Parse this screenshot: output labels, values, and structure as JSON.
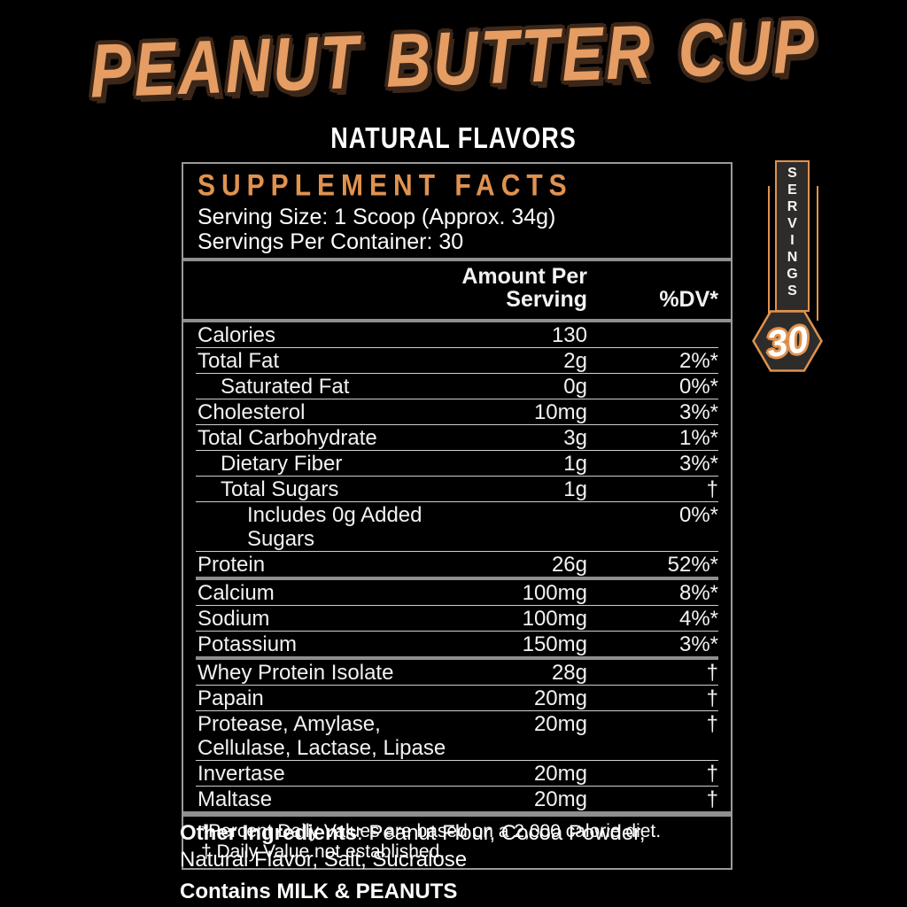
{
  "header": {
    "title": "PEANUT BUTTER CUP",
    "subtitle": "NATURAL FLAVORS"
  },
  "panel": {
    "title": "SUPPLEMENT FACTS",
    "serving_size": "Serving Size: 1 Scoop (Approx. 34g)",
    "servings_per_container": "Servings Per Container: 30",
    "columns": {
      "amount_line1": "Amount Per",
      "amount_line2": "Serving",
      "dv": "%DV*"
    },
    "rows": [
      {
        "name": "Calories",
        "amount": "130",
        "dv": "",
        "indent": 0,
        "section": false
      },
      {
        "name": "Total Fat",
        "amount": "2g",
        "dv": "2%*",
        "indent": 0,
        "section": false
      },
      {
        "name": "Saturated Fat",
        "amount": "0g",
        "dv": "0%*",
        "indent": 1,
        "section": false
      },
      {
        "name": "Cholesterol",
        "amount": "10mg",
        "dv": "3%*",
        "indent": 0,
        "section": false
      },
      {
        "name": "Total Carbohydrate",
        "amount": "3g",
        "dv": "1%*",
        "indent": 0,
        "section": false
      },
      {
        "name": "Dietary Fiber",
        "amount": "1g",
        "dv": "3%*",
        "indent": 1,
        "section": false
      },
      {
        "name": "Total Sugars",
        "amount": "1g",
        "dv": "†",
        "indent": 1,
        "section": false
      },
      {
        "name": "Includes 0g Added Sugars",
        "amount": "",
        "dv": "0%*",
        "indent": 2,
        "section": false
      },
      {
        "name": "Protein",
        "amount": "26g",
        "dv": "52%*",
        "indent": 0,
        "section": false
      },
      {
        "name": "Calcium",
        "amount": "100mg",
        "dv": "8%*",
        "indent": 0,
        "section": true
      },
      {
        "name": "Sodium",
        "amount": "100mg",
        "dv": "4%*",
        "indent": 0,
        "section": false
      },
      {
        "name": "Potassium",
        "amount": "150mg",
        "dv": "3%*",
        "indent": 0,
        "section": false
      },
      {
        "name": "Whey Protein Isolate",
        "amount": "28g",
        "dv": "†",
        "indent": 0,
        "section": true
      },
      {
        "name": "Papain",
        "amount": "20mg",
        "dv": "†",
        "indent": 0,
        "section": false
      },
      {
        "name": "Protease, Amylase, Cellulase, Lactase, Lipase",
        "amount": "20mg",
        "dv": "†",
        "indent": 0,
        "section": false
      },
      {
        "name": "Invertase",
        "amount": "20mg",
        "dv": "†",
        "indent": 0,
        "section": false
      },
      {
        "name": "Maltase",
        "amount": "20mg",
        "dv": "†",
        "indent": 0,
        "section": false
      }
    ],
    "footnotes": [
      "*Percent Daily Values are based on a 2,000 calorie diet.",
      "† Daily Value not established."
    ]
  },
  "servings_badge": {
    "label": "SERVINGS",
    "value": "30"
  },
  "other_ingredients": {
    "label": "Other Ingredients",
    "text": ": Peanut Flour, Cocoa Powder, Natural Flavor, Salt, Sucralose"
  },
  "contains": "Contains MILK & PEANUTS",
  "colors": {
    "background": "#000000",
    "accent_orange": "#e0924f",
    "title_orange": "#e59d63",
    "title_outline": "#3c2719",
    "panel_border": "#9a9a9a",
    "divider_thin": "#cfcfcf",
    "divider_thick": "#8f8f8f",
    "ribbon_fill": "#2e2c2a",
    "text_white": "#f2f2f2"
  }
}
